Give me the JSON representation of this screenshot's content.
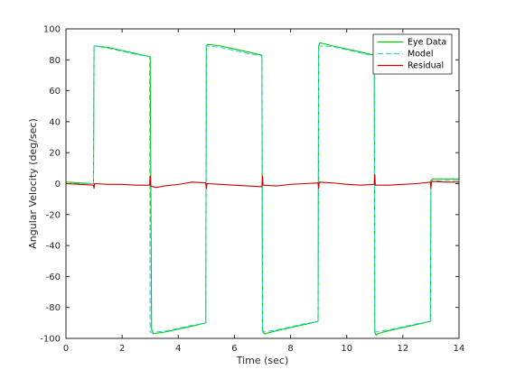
{
  "chart_data": {
    "type": "line",
    "title": "",
    "xlabel": "Time (sec)",
    "ylabel": "Angular  Velocity  (deg/sec)",
    "xlim": [
      0,
      14
    ],
    "ylim": [
      -100,
      100
    ],
    "x_ticks": [
      0,
      2,
      4,
      6,
      8,
      10,
      12,
      14
    ],
    "y_ticks": [
      -100,
      -80,
      -60,
      -40,
      -20,
      0,
      20,
      40,
      60,
      80,
      100
    ],
    "grid": false,
    "legend_position": "top-right",
    "series": [
      {
        "name": "Eye Data",
        "color": "#00cc00",
        "style": "solid",
        "x": [
          0,
          0.98,
          1.0,
          1.05,
          1.5,
          2.0,
          2.5,
          2.98,
          3.0,
          3.05,
          3.1,
          3.5,
          4.0,
          4.5,
          4.98,
          5.0,
          5.05,
          5.5,
          6.0,
          6.5,
          6.98,
          7.0,
          7.05,
          7.1,
          7.5,
          8.0,
          8.5,
          8.98,
          9.0,
          9.05,
          9.5,
          10.0,
          10.5,
          10.98,
          11.0,
          11.05,
          11.1,
          11.5,
          12.0,
          12.5,
          12.98,
          13.0,
          13.05,
          13.5,
          14.0
        ],
        "y": [
          1,
          0,
          89,
          89,
          88,
          86,
          84,
          82,
          82,
          -94,
          -97,
          -96,
          -94,
          -92,
          -90,
          89,
          90,
          89,
          87,
          85,
          83,
          -94,
          -97,
          -97,
          -95,
          -93,
          -91,
          -89,
          89,
          91,
          89,
          87,
          85,
          83,
          -96,
          -98,
          -97,
          -95,
          -93,
          -91,
          -89,
          2,
          3,
          3,
          3
        ]
      },
      {
        "name": "Model",
        "color": "#33ccdd",
        "style": "dashed",
        "x": [
          0,
          0.98,
          1.0,
          1.5,
          2.0,
          2.5,
          2.98,
          3.0,
          3.5,
          4.0,
          4.5,
          4.98,
          5.0,
          5.5,
          6.0,
          6.5,
          6.98,
          7.0,
          7.5,
          8.0,
          8.5,
          8.98,
          9.0,
          9.5,
          10.0,
          10.5,
          10.98,
          11.0,
          11.5,
          12.0,
          12.5,
          12.98,
          13.0,
          13.5,
          14.0
        ],
        "y": [
          0,
          0,
          89,
          87.5,
          85.5,
          83.5,
          82,
          -96,
          -95.5,
          -93.5,
          -91.5,
          -90,
          89,
          88,
          86,
          84,
          82.5,
          -96,
          -94.5,
          -92.5,
          -90.5,
          -89,
          89,
          88.5,
          86.5,
          84.5,
          82.5,
          -96,
          -94.5,
          -92.5,
          -90.5,
          -89,
          1.5,
          2,
          2
        ]
      },
      {
        "name": "Residual",
        "color": "#cc0000",
        "style": "solid",
        "x": [
          0,
          0.5,
          0.98,
          1.0,
          1.02,
          1.5,
          2.0,
          2.5,
          2.98,
          3.0,
          3.02,
          3.2,
          3.5,
          4.0,
          4.5,
          4.98,
          5.0,
          5.02,
          5.5,
          6.0,
          6.5,
          6.98,
          7.0,
          7.02,
          7.5,
          8.0,
          8.5,
          8.98,
          9.0,
          9.02,
          9.5,
          10.0,
          10.5,
          10.98,
          11.0,
          11.02,
          11.5,
          12.0,
          12.5,
          12.98,
          13.0,
          13.02,
          13.5,
          14.0
        ],
        "y": [
          0,
          -0.5,
          -1,
          -3,
          0,
          -0.5,
          -0.5,
          -1,
          -1,
          5,
          -1.5,
          -2.5,
          -1.5,
          -0.5,
          1,
          0.5,
          -3,
          0,
          -0.5,
          -1,
          -1.5,
          -2,
          5,
          -1,
          -1.5,
          -0.5,
          0,
          0.5,
          -3,
          1,
          0.5,
          -0.5,
          -1,
          -0.5,
          6,
          -1,
          -1,
          -0.5,
          0,
          1,
          -3,
          1.5,
          1,
          1
        ]
      }
    ]
  }
}
